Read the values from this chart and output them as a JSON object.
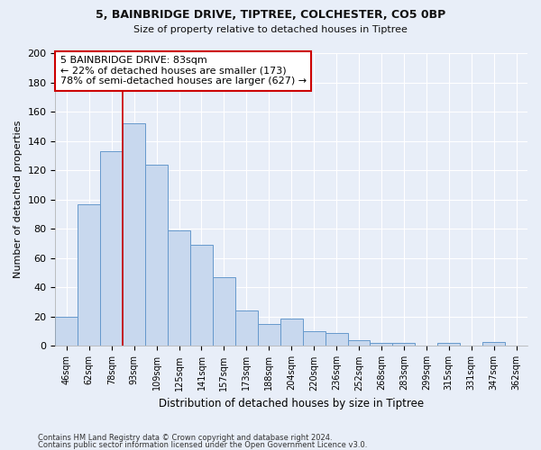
{
  "title1": "5, BAINBRIDGE DRIVE, TIPTREE, COLCHESTER, CO5 0BP",
  "title2": "Size of property relative to detached houses in Tiptree",
  "xlabel": "Distribution of detached houses by size in Tiptree",
  "ylabel": "Number of detached properties",
  "categories": [
    "46sqm",
    "62sqm",
    "78sqm",
    "93sqm",
    "109sqm",
    "125sqm",
    "141sqm",
    "157sqm",
    "173sqm",
    "188sqm",
    "204sqm",
    "220sqm",
    "236sqm",
    "252sqm",
    "268sqm",
    "283sqm",
    "299sqm",
    "315sqm",
    "331sqm",
    "347sqm",
    "362sqm"
  ],
  "values": [
    20,
    97,
    133,
    152,
    124,
    79,
    69,
    47,
    24,
    15,
    19,
    10,
    9,
    4,
    2,
    2,
    0,
    2,
    0,
    3,
    0
  ],
  "bar_color": "#c8d8ee",
  "bar_edge_color": "#6699cc",
  "annotation_text": "5 BAINBRIDGE DRIVE: 83sqm\n← 22% of detached houses are smaller (173)\n78% of semi-detached houses are larger (627) →",
  "annotation_box_color": "white",
  "annotation_box_edge_color": "#cc0000",
  "vline_color": "#cc0000",
  "vline_x_index": 2,
  "ylim": [
    0,
    200
  ],
  "yticks": [
    0,
    20,
    40,
    60,
    80,
    100,
    120,
    140,
    160,
    180,
    200
  ],
  "footer1": "Contains HM Land Registry data © Crown copyright and database right 2024.",
  "footer2": "Contains public sector information licensed under the Open Government Licence v3.0.",
  "bg_color": "#e8eef8",
  "grid_color": "#ffffff",
  "title_color": "#111111"
}
